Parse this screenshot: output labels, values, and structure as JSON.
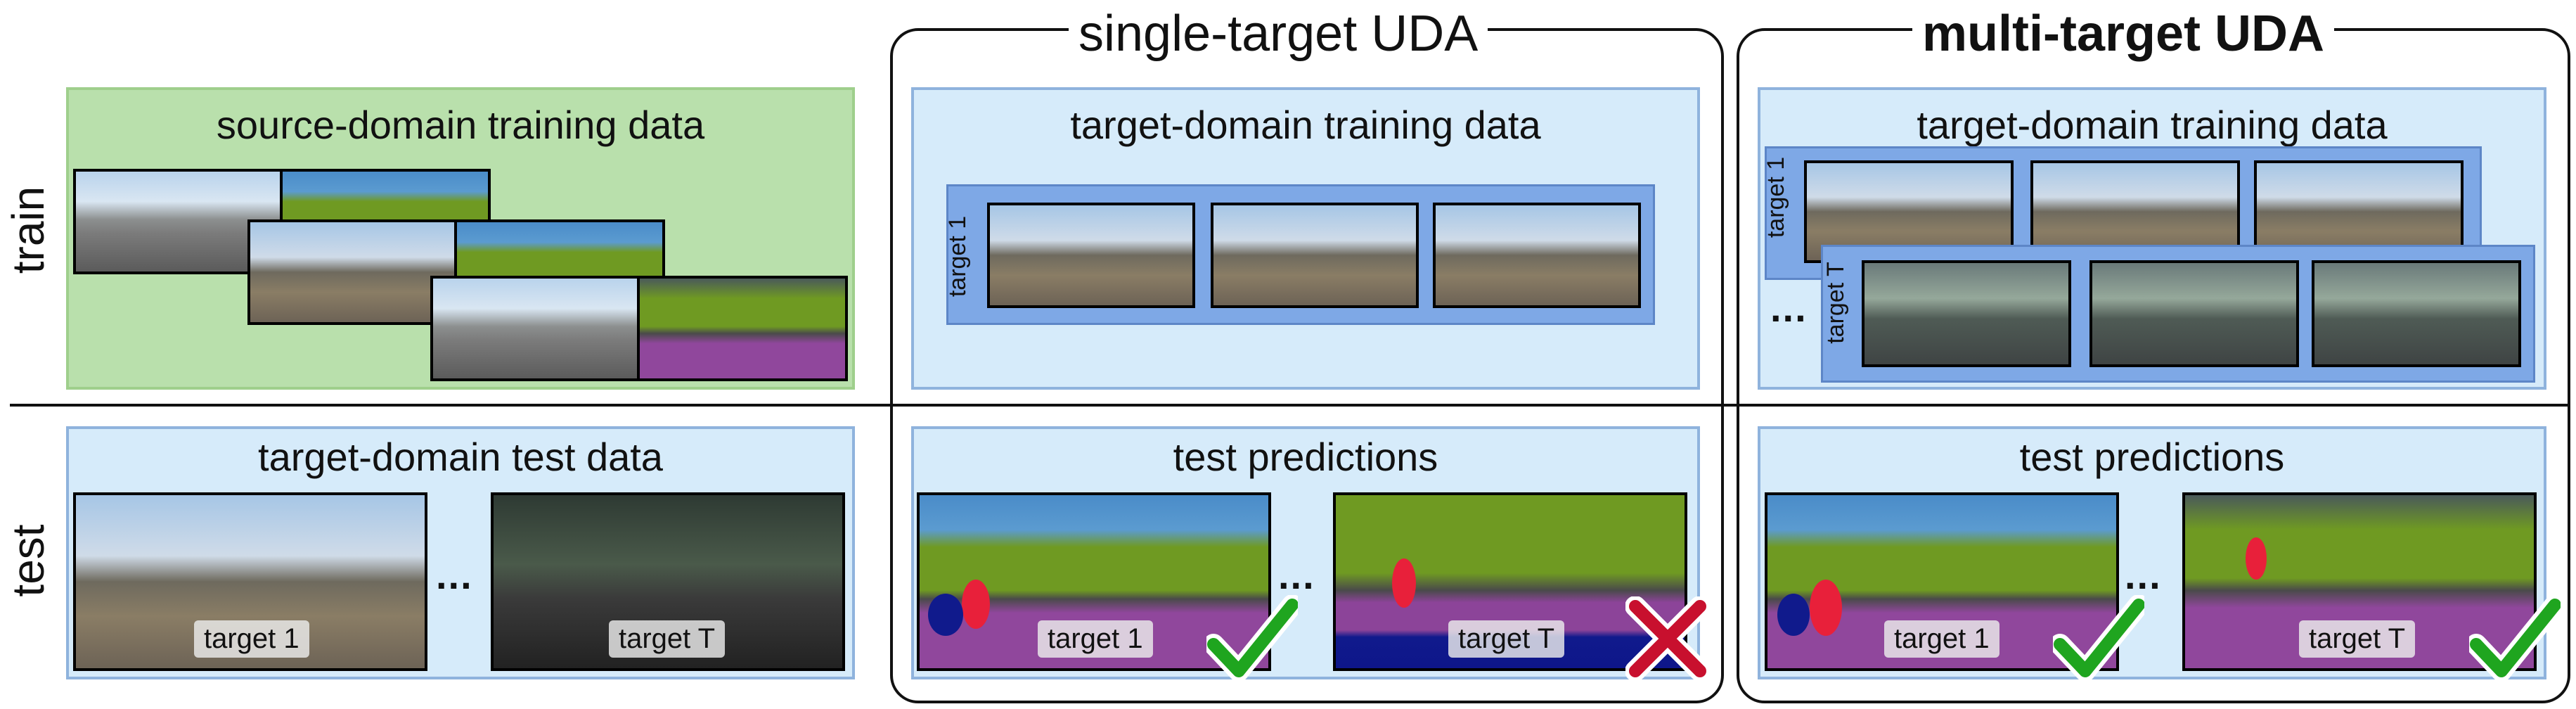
{
  "rows": {
    "train_label": "train",
    "test_label": "test"
  },
  "groups": {
    "single": {
      "title": "single-target UDA"
    },
    "multi": {
      "title": "multi-target UDA"
    }
  },
  "panels": {
    "source_train": {
      "title": "source-domain training data"
    },
    "single_train": {
      "title": "target-domain training data",
      "strip_label": "target 1"
    },
    "multi_train": {
      "title": "target-domain training data",
      "strip1_label": "target 1",
      "strip2_label": "target T",
      "ellipsis": "..."
    },
    "test_data": {
      "title": "target-domain test data",
      "tag1": "target 1",
      "tag2": "target T",
      "ellipsis": "..."
    },
    "single_pred": {
      "title": "test predictions",
      "tag1": "target 1",
      "tag2": "target T",
      "ellipsis": "..."
    },
    "multi_pred": {
      "title": "test predictions",
      "tag1": "target 1",
      "tag2": "target T",
      "ellipsis": "..."
    }
  },
  "colors": {
    "panel_blue": "#d6ebfa",
    "panel_green": "#b9e0ac",
    "strip_blue": "#7ea8e6",
    "check_green": "#1fa51f",
    "cross_red": "#c8102e",
    "seg_road": "#90479c",
    "seg_vegetation": "#6f9a22",
    "seg_sky": "#4a8cc9",
    "seg_car": "#101a8c",
    "seg_person": "#e8203a"
  },
  "icons": {
    "check": "check-icon",
    "cross": "cross-icon"
  }
}
